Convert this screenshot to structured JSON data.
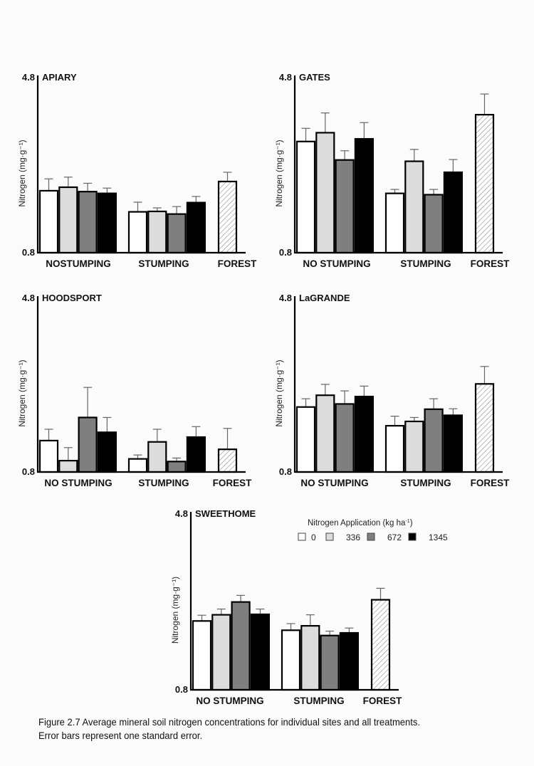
{
  "figure": {
    "caption_line1": "Figure 2.7  Average mineral soil nitrogen concentrations for individual sites and all treatments.",
    "caption_line2": "Error bars represent one standard error."
  },
  "legend": {
    "title": "Nitrogen Application  (kg  ha",
    "title_sup": "-1",
    "title_close": ")",
    "entries": [
      {
        "label": "0",
        "color": "#ffffff"
      },
      {
        "label": "336",
        "color": "#dcdcdc"
      },
      {
        "label": "672",
        "color": "#7f7f7f"
      },
      {
        "label": "1345",
        "color": "#000000"
      }
    ]
  },
  "colors": {
    "forest_hatch": "#888888",
    "axis": "#000000",
    "error_bar": "#666666"
  },
  "chart_data": [
    {
      "type": "bar",
      "title": "APIARY",
      "ylabel": "Nitrogen (mg·g⁻¹)",
      "ylim": [
        0.8,
        4.8
      ],
      "yticks": [
        "0.8",
        "4.8"
      ],
      "categories": [
        "NOSTUMPING",
        "STUMPING",
        "FOREST"
      ],
      "series": [
        {
          "name": "0",
          "values": [
            2.21,
            1.73,
            null
          ],
          "errors": [
            0.27,
            0.22,
            null
          ]
        },
        {
          "name": "336",
          "values": [
            2.29,
            1.74,
            null
          ],
          "errors": [
            0.23,
            0.08,
            null
          ]
        },
        {
          "name": "672",
          "values": [
            2.19,
            1.68,
            null
          ],
          "errors": [
            0.19,
            0.17,
            null
          ]
        },
        {
          "name": "1345",
          "values": [
            2.15,
            1.94,
            null
          ],
          "errors": [
            0.12,
            0.14,
            null
          ]
        },
        {
          "name": "Forest",
          "values": [
            null,
            null,
            2.42
          ],
          "errors": [
            null,
            null,
            0.21
          ]
        }
      ]
    },
    {
      "type": "bar",
      "title": "GATES",
      "ylabel": "Nitrogen (mg·g⁻¹)",
      "ylim": [
        0.8,
        4.8
      ],
      "yticks": [
        "0.8",
        "4.8"
      ],
      "categories": [
        "NO STUMPING",
        "STUMPING",
        "FOREST"
      ],
      "series": [
        {
          "name": "0",
          "values": [
            3.33,
            2.15,
            null
          ],
          "errors": [
            0.3,
            0.09,
            null
          ]
        },
        {
          "name": "336",
          "values": [
            3.53,
            2.88,
            null
          ],
          "errors": [
            0.45,
            0.27,
            null
          ]
        },
        {
          "name": "672",
          "values": [
            2.91,
            2.12,
            null
          ],
          "errors": [
            0.21,
            0.12,
            null
          ]
        },
        {
          "name": "1345",
          "values": [
            3.39,
            2.63,
            null
          ],
          "errors": [
            0.37,
            0.29,
            null
          ]
        },
        {
          "name": "Forest",
          "values": [
            null,
            null,
            3.94
          ],
          "errors": [
            null,
            null,
            0.47
          ]
        }
      ]
    },
    {
      "type": "bar",
      "title": "HOODSPORT",
      "ylabel": "Nitrogen (mg·g⁻¹)",
      "ylim": [
        0.8,
        4.8
      ],
      "yticks": [
        "0.8",
        "4.8"
      ],
      "categories": [
        "NO STUMPING",
        "STUMPING",
        "FOREST"
      ],
      "series": [
        {
          "name": "0",
          "values": [
            1.52,
            1.1,
            null
          ],
          "errors": [
            0.26,
            0.09,
            null
          ]
        },
        {
          "name": "336",
          "values": [
            1.06,
            1.49,
            null
          ],
          "errors": [
            0.3,
            0.29,
            null
          ]
        },
        {
          "name": "672",
          "values": [
            2.05,
            1.04,
            null
          ],
          "errors": [
            0.69,
            0.08,
            null
          ]
        },
        {
          "name": "1345",
          "values": [
            1.71,
            1.6,
            null
          ],
          "errors": [
            0.34,
            0.24,
            null
          ]
        },
        {
          "name": "Forest",
          "values": [
            null,
            null,
            1.32
          ],
          "errors": [
            null,
            null,
            0.48
          ]
        }
      ]
    },
    {
      "type": "bar",
      "title": "LaGRANDE",
      "ylabel": "Nitrogen (mg·g⁻¹)",
      "ylim": [
        0.8,
        4.8
      ],
      "yticks": [
        "0.8",
        "4.8"
      ],
      "categories": [
        "NO STUMPING",
        "STUMPING",
        "FOREST"
      ],
      "series": [
        {
          "name": "0",
          "values": [
            2.29,
            1.86,
            null
          ],
          "errors": [
            0.19,
            0.22,
            null
          ]
        },
        {
          "name": "336",
          "values": [
            2.56,
            1.96,
            null
          ],
          "errors": [
            0.25,
            0.09,
            null
          ]
        },
        {
          "name": "672",
          "values": [
            2.36,
            2.24,
            null
          ],
          "errors": [
            0.3,
            0.24,
            null
          ]
        },
        {
          "name": "1345",
          "values": [
            2.53,
            2.1,
            null
          ],
          "errors": [
            0.24,
            0.15,
            null
          ]
        },
        {
          "name": "Forest",
          "values": [
            null,
            null,
            2.82
          ],
          "errors": [
            null,
            null,
            0.4
          ]
        }
      ]
    },
    {
      "type": "bar",
      "title": "SWEETHOME",
      "ylabel": "Nitrogen (mg·g⁻¹)",
      "ylim": [
        0.8,
        4.8
      ],
      "yticks": [
        "0.8",
        "4.8"
      ],
      "categories": [
        "NO STUMPING",
        "STUMPING",
        "FOREST"
      ],
      "series": [
        {
          "name": "0",
          "values": [
            2.36,
            2.15,
            null
          ],
          "errors": [
            0.13,
            0.15,
            null
          ]
        },
        {
          "name": "336",
          "values": [
            2.5,
            2.25,
            null
          ],
          "errors": [
            0.13,
            0.25,
            null
          ]
        },
        {
          "name": "672",
          "values": [
            2.79,
            2.03,
            null
          ],
          "errors": [
            0.15,
            0.1,
            null
          ]
        },
        {
          "name": "1345",
          "values": [
            2.51,
            2.09,
            null
          ],
          "errors": [
            0.12,
            0.11,
            null
          ]
        },
        {
          "name": "Forest",
          "values": [
            null,
            null,
            2.84
          ],
          "errors": [
            null,
            null,
            0.26
          ]
        }
      ]
    }
  ]
}
